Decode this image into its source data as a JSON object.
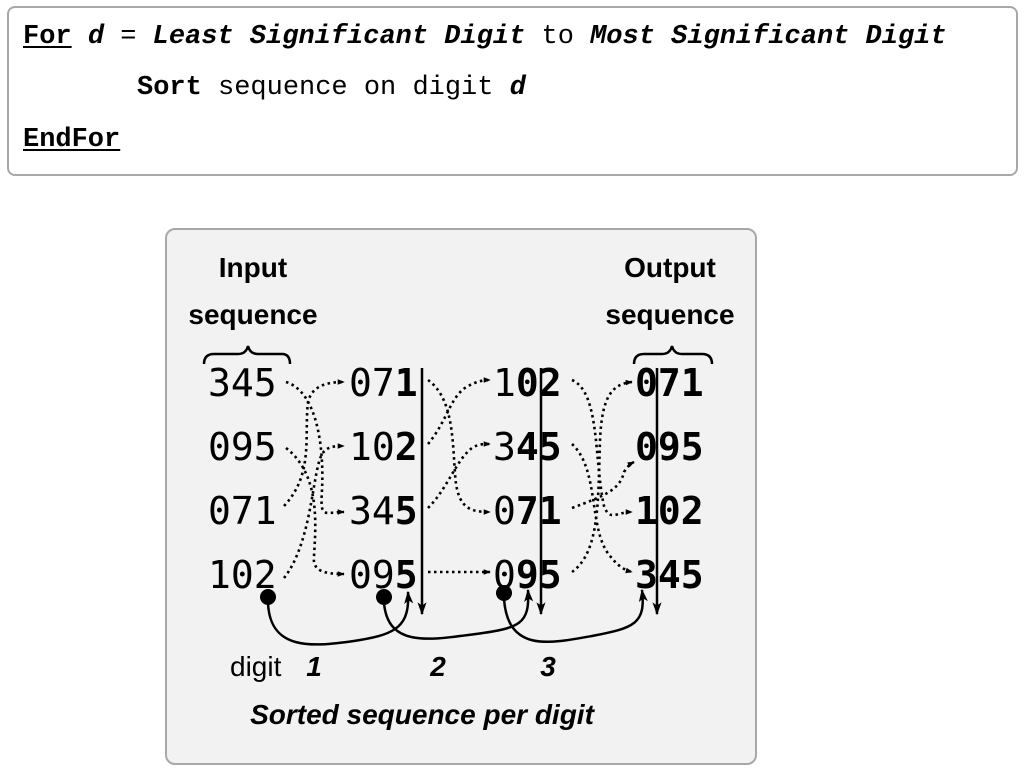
{
  "pseudocode": {
    "line1": {
      "for_kw": "For",
      "var": "d",
      "eq": " = ",
      "from": "Least Significant Digit",
      "to_kw": " to ",
      "until": "Most Significant Digit"
    },
    "line2": {
      "sort_kw": "Sort",
      "text": " sequence on digit ",
      "var": "d"
    },
    "line3": {
      "end_kw": "EndFor"
    }
  },
  "diagram": {
    "input_header_line1": "Input",
    "input_header_line2": "sequence",
    "output_header_line1": "Output",
    "output_header_line2": "sequence",
    "columns": [
      {
        "id": "input",
        "items": [
          "345",
          "095",
          "071",
          "102"
        ],
        "bold_from": 3
      },
      {
        "id": "pass1",
        "items": [
          "071",
          "102",
          "345",
          "095"
        ],
        "bold_from": 2
      },
      {
        "id": "pass2",
        "items": [
          "102",
          "345",
          "071",
          "095"
        ],
        "bold_from": 1
      },
      {
        "id": "output",
        "items": [
          "071",
          "095",
          "102",
          "345"
        ],
        "bold_from": 0
      }
    ],
    "digit_label": "digit",
    "digit_numbers": [
      "1",
      "2",
      "3"
    ],
    "caption": "Sorted sequence per digit"
  }
}
